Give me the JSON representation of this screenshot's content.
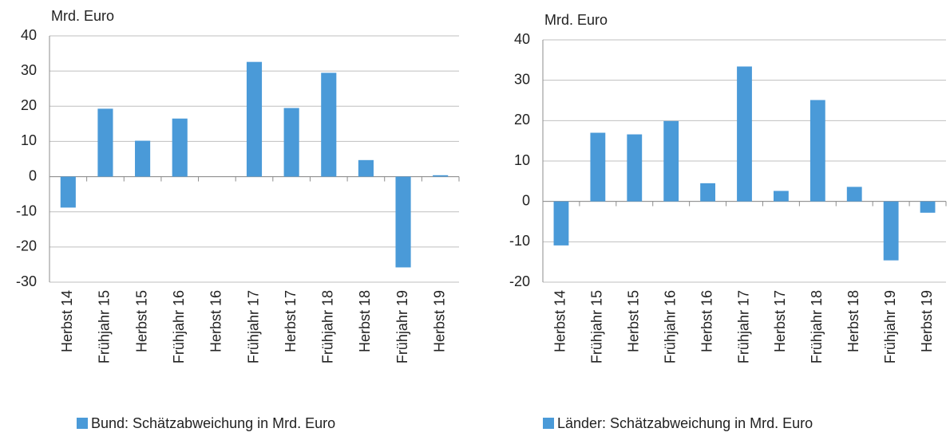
{
  "chart_data": [
    {
      "type": "bar",
      "y_label": "Mrd. Euro",
      "categories": [
        "Herbst 14",
        "Frühjahr 15",
        "Herbst 15",
        "Frühjahr 16",
        "Herbst 16",
        "Frühjahr 17",
        "Herbst 17",
        "Frühjahr 18",
        "Herbst 18",
        "Frühjahr 19",
        "Herbst 19"
      ],
      "series": [
        {
          "name": "Bund: Schätzabweichung in Mrd. Euro",
          "color": "#4a9ad8",
          "values": [
            -8.8,
            19.3,
            10.2,
            16.5,
            0,
            32.6,
            19.5,
            29.5,
            4.7,
            -25.8,
            0.4
          ]
        }
      ],
      "ylim": [
        -30,
        40
      ],
      "yticks": [
        -30,
        -20,
        -10,
        0,
        10,
        20,
        30,
        40
      ],
      "grid": true
    },
    {
      "type": "bar",
      "y_label": "Mrd. Euro",
      "categories": [
        "Herbst 14",
        "Frühjahr 15",
        "Herbst 15",
        "Frühjahr 16",
        "Herbst 16",
        "Frühjahr 17",
        "Herbst 17",
        "Frühjahr 18",
        "Herbst 18",
        "Frühjahr 19",
        "Herbst 19"
      ],
      "series": [
        {
          "name": "Länder: Schätzabweichung in Mrd. Euro",
          "color": "#4a9ad8",
          "values": [
            -10.9,
            17,
            16.6,
            19.9,
            4.5,
            33.4,
            2.6,
            25.1,
            3.6,
            -14.6,
            -2.8
          ]
        }
      ],
      "ylim": [
        -20,
        40
      ],
      "yticks": [
        -20,
        -10,
        0,
        10,
        20,
        30,
        40
      ],
      "grid": true
    }
  ]
}
